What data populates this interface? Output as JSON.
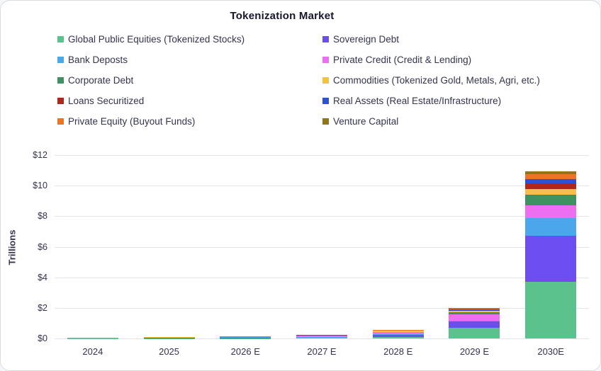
{
  "card": {
    "background": "#ffffff",
    "border_color": "#d9dce3"
  },
  "colors": {
    "title_text": "#16162e",
    "axis_text": "#33334f",
    "legend_text": "#33334f",
    "gridline": "#e3e3ec"
  },
  "chart_data": {
    "type": "bar",
    "stacked": true,
    "title": "Tokenization Market",
    "xlabel": "",
    "ylabel": "Trillions",
    "categories": [
      "2024",
      "2025",
      "2026 E",
      "2027 E",
      "2028 E",
      "2029 E",
      "2030E"
    ],
    "ylim": [
      0,
      12
    ],
    "ytick_labels": [
      "$0",
      "$2",
      "$4",
      "$6",
      "$8",
      "$10",
      "$12"
    ],
    "ytick_values": [
      0,
      2,
      4,
      6,
      8,
      10,
      12
    ],
    "grid": true,
    "legend_position": "top",
    "legend_columns": 2,
    "series": [
      {
        "name": "Global Public Equities (Tokenized Stocks)",
        "color": "#5BC28E",
        "values": [
          0.01,
          0.02,
          0.02,
          0.03,
          0.1,
          0.7,
          3.7
        ]
      },
      {
        "name": "Sovereign Debt",
        "color": "#6B4DF0",
        "values": [
          0.01,
          0.01,
          0.05,
          0.04,
          0.13,
          0.4,
          3.0
        ]
      },
      {
        "name": "Bank Deposts",
        "color": "#4BA7E9",
        "values": [
          0.005,
          0.005,
          0.005,
          0.01,
          0.03,
          0.05,
          1.2
        ]
      },
      {
        "name": "Private Credit (Credit & Lending)",
        "color": "#ED6FF1",
        "values": [
          0.01,
          0.01,
          0.02,
          0.1,
          0.15,
          0.45,
          0.8
        ]
      },
      {
        "name": "Corporate Debt",
        "color": "#3E9160",
        "values": [
          0.005,
          0.01,
          0.005,
          0.01,
          0.03,
          0.1,
          0.7
        ]
      },
      {
        "name": "Commodities (Tokenized Gold, Metals, Agri, etc.)",
        "color": "#F3C04A",
        "values": [
          0.01,
          0.02,
          0.01,
          0.02,
          0.05,
          0.1,
          0.4
        ]
      },
      {
        "name": "Loans Securitized",
        "color": "#B1251D",
        "values": [
          0.005,
          0.005,
          0.005,
          0.01,
          0.02,
          0.03,
          0.35
        ]
      },
      {
        "name": "Real Assets (Real Estate/Infrastructure)",
        "color": "#2C50D6",
        "values": [
          0.005,
          0.005,
          0.005,
          0.005,
          0.02,
          0.08,
          0.3
        ]
      },
      {
        "name": "Private Equity (Buyout Funds)",
        "color": "#EE7327",
        "values": [
          0.005,
          0.01,
          0.005,
          0.005,
          0.03,
          0.05,
          0.3
        ]
      },
      {
        "name": "Venture Capital",
        "color": "#8E761B",
        "values": [
          0.005,
          0.005,
          0.005,
          0.01,
          0.02,
          0.05,
          0.2
        ]
      }
    ]
  }
}
